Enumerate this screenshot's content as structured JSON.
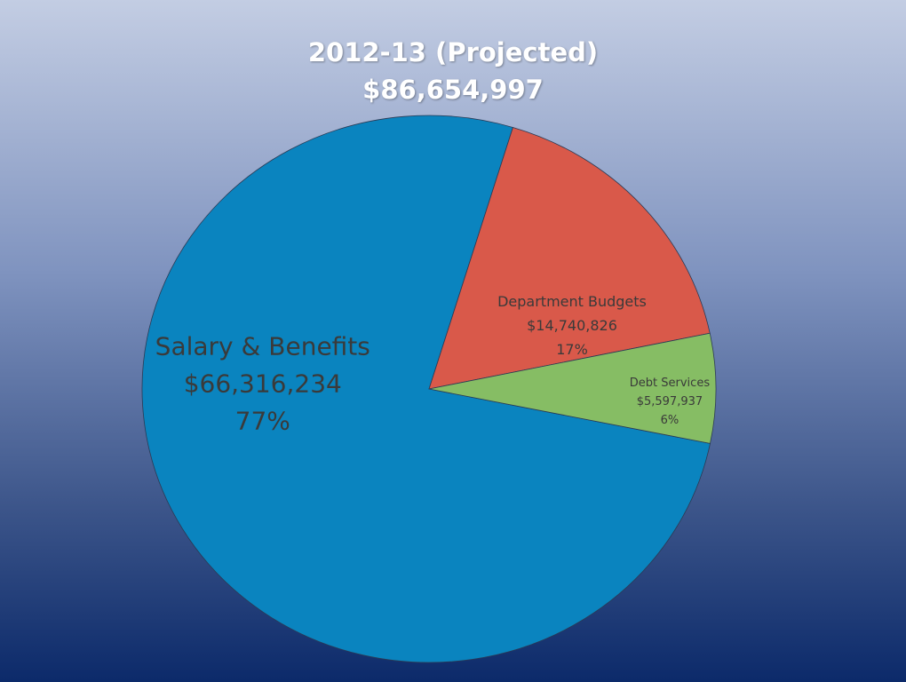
{
  "chart_data": {
    "type": "pie",
    "title": "2012-13 (Projected)",
    "subtitle": "$86,654,997",
    "slices": [
      {
        "name": "Salary & Benefits",
        "value": 66316234,
        "value_label": "$66,316,234",
        "percent_label": "77%",
        "color": "#0a84bf"
      },
      {
        "name": "Department Budgets",
        "value": 14740826,
        "value_label": "$14,740,826",
        "percent_label": "17%",
        "color": "#d9594a"
      },
      {
        "name": "Debt Services",
        "value": 5597937,
        "value_label": "$5,597,937",
        "percent_label": "6%",
        "color": "#86bd64"
      }
    ]
  }
}
